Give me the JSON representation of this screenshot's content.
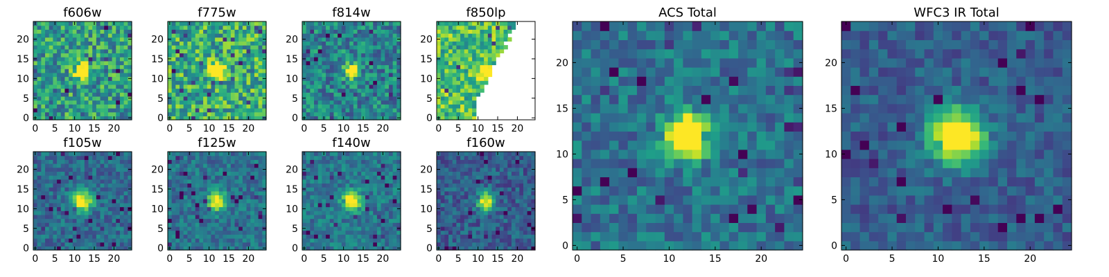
{
  "chart_data": [
    {
      "type": "heatmap",
      "title": "f606w",
      "xticks": [
        0,
        5,
        10,
        15,
        20
      ],
      "yticks": [
        0,
        5,
        10,
        15,
        20
      ],
      "xlim": [
        0,
        25
      ],
      "ylim": [
        0,
        25
      ],
      "grid_size": 25,
      "colormap": "viridis",
      "source": {
        "center": [
          12,
          12
        ],
        "peak": "bright"
      }
    },
    {
      "type": "heatmap",
      "title": "f775w",
      "xticks": [
        0,
        5,
        10,
        15,
        20
      ],
      "yticks": [
        0,
        5,
        10,
        15,
        20
      ],
      "xlim": [
        0,
        25
      ],
      "ylim": [
        0,
        25
      ],
      "grid_size": 25,
      "colormap": "viridis",
      "source": {
        "center": [
          12,
          12
        ],
        "peak": "bright"
      }
    },
    {
      "type": "heatmap",
      "title": "f814w",
      "xticks": [
        0,
        5,
        10,
        15,
        20
      ],
      "yticks": [
        0,
        5,
        10,
        15,
        20
      ],
      "xlim": [
        0,
        25
      ],
      "ylim": [
        0,
        25
      ],
      "grid_size": 25,
      "colormap": "viridis",
      "source": {
        "center": [
          12,
          12
        ],
        "peak": "bright"
      }
    },
    {
      "type": "heatmap",
      "title": "f850lp",
      "xticks": [
        0,
        5,
        10,
        15,
        20
      ],
      "yticks": [
        0,
        5,
        10,
        15,
        20
      ],
      "xlim": [
        0,
        25
      ],
      "ylim": [
        0,
        25
      ],
      "grid_size": 25,
      "colormap": "viridis",
      "source": {
        "center": [
          12,
          12
        ],
        "peak": "bright"
      },
      "masked_region": "right side (no data)"
    },
    {
      "type": "heatmap",
      "title": "f105w",
      "xticks": [
        0,
        5,
        10,
        15,
        20
      ],
      "yticks": [
        0,
        5,
        10,
        15,
        20
      ],
      "xlim": [
        0,
        25
      ],
      "ylim": [
        0,
        25
      ],
      "grid_size": 25,
      "colormap": "viridis",
      "source": {
        "center": [
          12,
          12
        ],
        "peak": "bright"
      }
    },
    {
      "type": "heatmap",
      "title": "f125w",
      "xticks": [
        0,
        5,
        10,
        15,
        20
      ],
      "yticks": [
        0,
        5,
        10,
        15,
        20
      ],
      "xlim": [
        0,
        25
      ],
      "ylim": [
        0,
        25
      ],
      "grid_size": 25,
      "colormap": "viridis",
      "source": {
        "center": [
          12,
          12
        ],
        "peak": "bright"
      }
    },
    {
      "type": "heatmap",
      "title": "f140w",
      "xticks": [
        0,
        5,
        10,
        15,
        20
      ],
      "yticks": [
        0,
        5,
        10,
        15,
        20
      ],
      "xlim": [
        0,
        25
      ],
      "ylim": [
        0,
        25
      ],
      "grid_size": 25,
      "colormap": "viridis",
      "source": {
        "center": [
          12,
          12
        ],
        "peak": "bright"
      }
    },
    {
      "type": "heatmap",
      "title": "f160w",
      "xticks": [
        0,
        5,
        10,
        15,
        20
      ],
      "yticks": [
        0,
        5,
        10,
        15,
        20
      ],
      "xlim": [
        0,
        25
      ],
      "ylim": [
        0,
        25
      ],
      "grid_size": 25,
      "colormap": "viridis",
      "source": {
        "center": [
          12,
          12
        ],
        "peak": "bright"
      }
    },
    {
      "type": "heatmap",
      "title": "ACS Total",
      "xticks": [
        0,
        5,
        10,
        15,
        20
      ],
      "yticks": [
        0,
        5,
        10,
        15,
        20
      ],
      "xlim": [
        0,
        25
      ],
      "ylim": [
        0,
        25
      ],
      "grid_size": 25,
      "colormap": "viridis",
      "source": {
        "center": [
          12,
          12
        ],
        "peak": "bright"
      }
    },
    {
      "type": "heatmap",
      "title": "WFC3 IR Total",
      "xticks": [
        0,
        5,
        10,
        15,
        20
      ],
      "yticks": [
        0,
        5,
        10,
        15,
        20
      ],
      "xlim": [
        0,
        25
      ],
      "ylim": [
        0,
        25
      ],
      "grid_size": 25,
      "colormap": "viridis",
      "source": {
        "center": [
          12,
          12
        ],
        "peak": "bright"
      }
    }
  ],
  "colors": {
    "viridis_low": "#440154",
    "viridis_mid": "#21908d",
    "viridis_high": "#fde725",
    "masked": "#ffffff"
  }
}
